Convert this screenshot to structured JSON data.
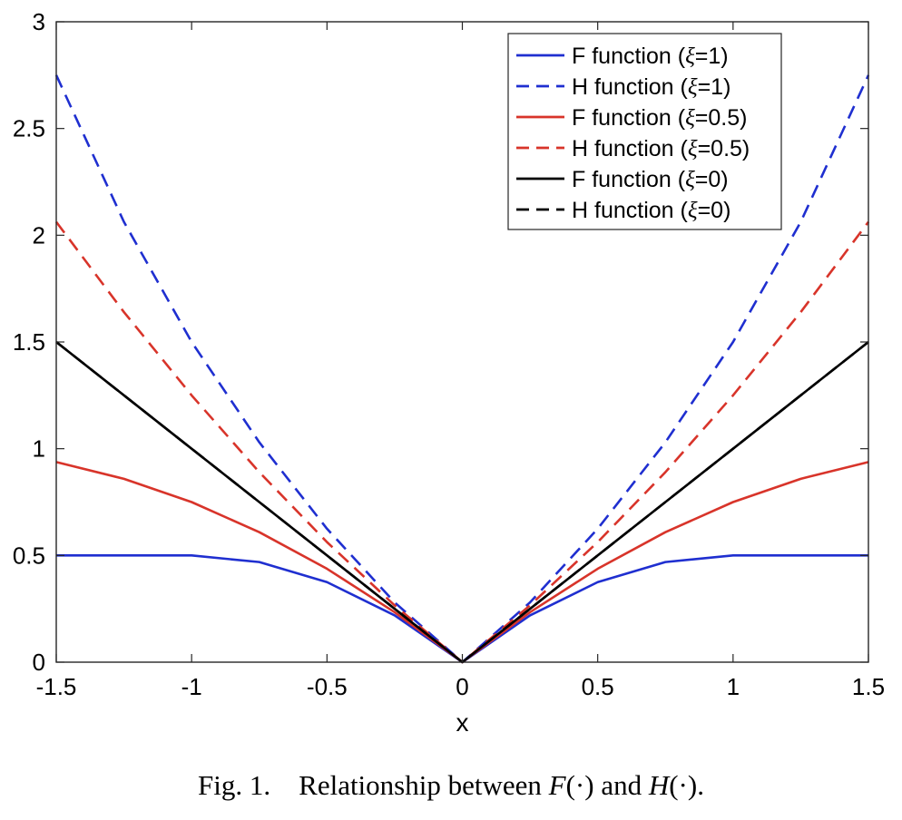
{
  "chart_data": {
    "type": "line",
    "title": "",
    "xlabel": "x",
    "ylabel": "",
    "xlim": [
      -1.5,
      1.5
    ],
    "ylim": [
      0,
      3
    ],
    "xticks": [
      -1.5,
      -1,
      -0.5,
      0,
      0.5,
      1,
      1.5
    ],
    "xtick_labels": [
      "-1.5",
      "-1",
      "-0.5",
      "0",
      "0.5",
      "1",
      "1.5"
    ],
    "yticks": [
      0,
      0.5,
      1,
      1.5,
      2,
      2.5,
      3
    ],
    "ytick_labels": [
      "0",
      "0.5",
      "1",
      "1.5",
      "2",
      "2.5",
      "3"
    ],
    "grid": false,
    "legend_position": "top-right",
    "x": [
      -1.5,
      -1.25,
      -1,
      -0.75,
      -0.5,
      -0.25,
      0,
      0.25,
      0.5,
      0.75,
      1,
      1.25,
      1.5
    ],
    "series": [
      {
        "name": "F function (ξ=1)",
        "legend_prefix": "F function (",
        "legend_symbol": "ξ",
        "legend_suffix": "=1)",
        "color": "#1f2fd0",
        "dash": "solid",
        "values": [
          0.5,
          0.5,
          0.5,
          0.469,
          0.375,
          0.219,
          0,
          0.219,
          0.375,
          0.469,
          0.5,
          0.5,
          0.5
        ]
      },
      {
        "name": "H function (ξ=1)",
        "legend_prefix": "H function (",
        "legend_symbol": "ξ",
        "legend_suffix": "=1)",
        "color": "#1f2fd0",
        "dash": "dashed",
        "values": [
          2.75,
          2.0625,
          1.5,
          1.03,
          0.625,
          0.28,
          0,
          0.28,
          0.625,
          1.03,
          1.5,
          2.0625,
          2.75
        ]
      },
      {
        "name": "F function (ξ=0.5)",
        "legend_prefix": "F function (",
        "legend_symbol": "ξ",
        "legend_suffix": "=0.5)",
        "color": "#d8342a",
        "dash": "solid",
        "values": [
          0.9375,
          0.859,
          0.75,
          0.609,
          0.4375,
          0.234,
          0,
          0.234,
          0.4375,
          0.609,
          0.75,
          0.859,
          0.9375
        ]
      },
      {
        "name": "H function (ξ=0.5)",
        "legend_prefix": "H function (",
        "legend_symbol": "ξ",
        "legend_suffix": "=0.5)",
        "color": "#d8342a",
        "dash": "dashed",
        "values": [
          2.0625,
          1.64,
          1.25,
          0.89,
          0.5625,
          0.266,
          0,
          0.266,
          0.5625,
          0.89,
          1.25,
          1.64,
          2.0625
        ]
      },
      {
        "name": "F function (ξ=0)",
        "legend_prefix": "F function (",
        "legend_symbol": "ξ",
        "legend_suffix": "=0)",
        "color": "#000000",
        "dash": "solid",
        "values": [
          1.5,
          1.25,
          1,
          0.75,
          0.5,
          0.25,
          0,
          0.25,
          0.5,
          0.75,
          1,
          1.25,
          1.5
        ]
      },
      {
        "name": "H function (ξ=0)",
        "legend_prefix": "H function (",
        "legend_symbol": "ξ",
        "legend_suffix": "=0)",
        "color": "#000000",
        "dash": "dashed",
        "values": [
          1.5,
          1.25,
          1,
          0.75,
          0.5,
          0.25,
          0,
          0.25,
          0.5,
          0.75,
          1,
          1.25,
          1.5
        ]
      }
    ]
  },
  "caption": {
    "label": "Fig. 1.",
    "text_start": "Relationship between ",
    "f_symbol": "F",
    "f_arg": "(·)",
    "text_mid": " and ",
    "h_symbol": "H",
    "h_arg": "(·)",
    "text_end": "."
  }
}
